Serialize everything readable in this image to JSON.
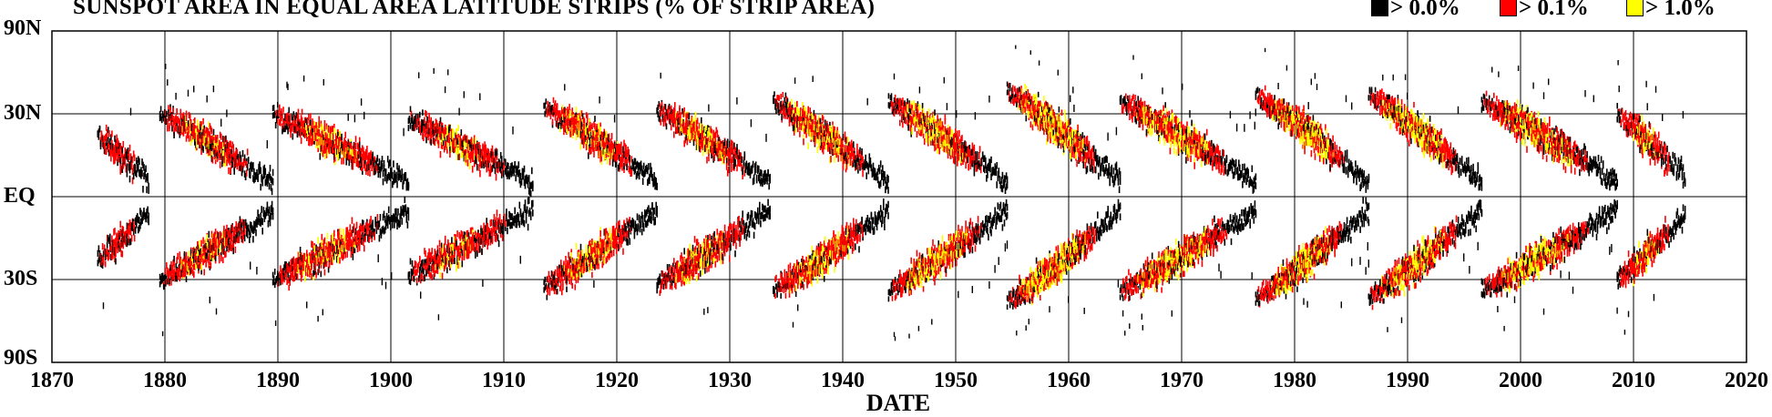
{
  "chart_data": {
    "type": "heatmap",
    "title": "SUNSPOT AREA IN EQUAL AREA LATITUDE STRIPS (% OF STRIP AREA)",
    "xlabel": "DATE",
    "ylabel": "",
    "xlim": [
      1870,
      2020
    ],
    "ylim": [
      -90,
      90
    ],
    "x_ticks": [
      1870,
      1880,
      1890,
      1900,
      1910,
      1920,
      1930,
      1940,
      1950,
      1960,
      1970,
      1980,
      1990,
      2000,
      2010,
      2020
    ],
    "y_ticks": [
      {
        "value": 90,
        "label": "90N"
      },
      {
        "value": 30,
        "label": "30N"
      },
      {
        "value": 0,
        "label": "EQ"
      },
      {
        "value": -30,
        "label": "30S"
      },
      {
        "value": -90,
        "label": "90S"
      }
    ],
    "grid": true,
    "legend_position": "top-right",
    "legend": [
      {
        "label": "> 0.0%",
        "color": "#000000",
        "threshold": 0.0
      },
      {
        "label": "> 0.1%",
        "color": "#ff0000",
        "threshold": 0.1
      },
      {
        "label": "> 1.0%",
        "color": "#ffff00",
        "threshold": 1.0
      }
    ],
    "cycles": [
      {
        "start": 1874.0,
        "end": 1878.5,
        "lat_start": 22,
        "lat_end": 6,
        "intensity": 0.3
      },
      {
        "start": 1879.5,
        "end": 1889.5,
        "lat_start": 30,
        "lat_end": 5,
        "intensity": 0.55
      },
      {
        "start": 1889.5,
        "end": 1901.5,
        "lat_start": 30,
        "lat_end": 5,
        "intensity": 0.55
      },
      {
        "start": 1901.5,
        "end": 1912.5,
        "lat_start": 28,
        "lat_end": 5,
        "intensity": 0.5
      },
      {
        "start": 1913.5,
        "end": 1923.5,
        "lat_start": 33,
        "lat_end": 5,
        "intensity": 0.65
      },
      {
        "start": 1923.5,
        "end": 1933.5,
        "lat_start": 32,
        "lat_end": 5,
        "intensity": 0.65
      },
      {
        "start": 1933.8,
        "end": 1944.0,
        "lat_start": 35,
        "lat_end": 5,
        "intensity": 0.75
      },
      {
        "start": 1944.0,
        "end": 1954.5,
        "lat_start": 35,
        "lat_end": 5,
        "intensity": 0.75
      },
      {
        "start": 1954.5,
        "end": 1964.5,
        "lat_start": 40,
        "lat_end": 5,
        "intensity": 0.95
      },
      {
        "start": 1964.5,
        "end": 1976.5,
        "lat_start": 35,
        "lat_end": 5,
        "intensity": 0.75
      },
      {
        "start": 1976.5,
        "end": 1986.5,
        "lat_start": 38,
        "lat_end": 5,
        "intensity": 0.85
      },
      {
        "start": 1986.5,
        "end": 1996.5,
        "lat_start": 38,
        "lat_end": 5,
        "intensity": 0.85
      },
      {
        "start": 1996.5,
        "end": 2008.5,
        "lat_start": 35,
        "lat_end": 5,
        "intensity": 0.75
      },
      {
        "start": 2008.5,
        "end": 2014.5,
        "lat_start": 30,
        "lat_end": 7,
        "intensity": 0.55
      }
    ]
  }
}
